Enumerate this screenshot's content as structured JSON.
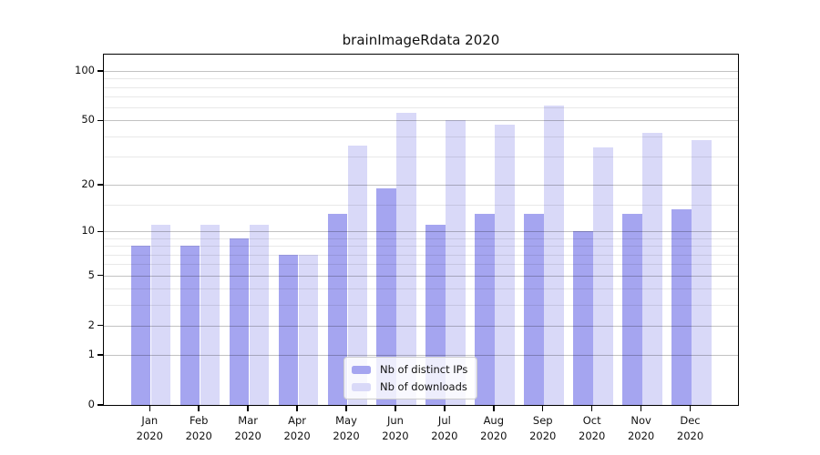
{
  "chart_data": {
    "type": "bar",
    "title": "brainImageRdata 2020",
    "categories": [
      "Jan",
      "Feb",
      "Mar",
      "Apr",
      "May",
      "Jun",
      "Jul",
      "Aug",
      "Sep",
      "Oct",
      "Nov",
      "Dec"
    ],
    "category_year": "2020",
    "series": [
      {
        "name": "Nb of distinct IPs",
        "color": "#a5a5f0",
        "values": [
          8,
          8,
          9,
          7,
          13,
          19,
          11,
          13,
          13,
          10,
          13,
          14
        ]
      },
      {
        "name": "Nb of downloads",
        "color": "#d9d9f8",
        "values": [
          11,
          11,
          11,
          7,
          35,
          56,
          50,
          47,
          62,
          34,
          42,
          38
        ]
      }
    ],
    "legend": [
      "Nb of distinct IPs",
      "Nb of downloads"
    ],
    "legend_position": "inside-bottom-center",
    "y_scale": "log1p",
    "y_ticks": [
      100,
      50,
      20,
      10,
      5,
      2,
      1,
      0
    ],
    "y_minor_gridlines": [
      3,
      4,
      6,
      7,
      8,
      9,
      15,
      30,
      40,
      60,
      70,
      80,
      90
    ],
    "ylim": [
      0,
      126
    ],
    "grid": true,
    "gridlines_over_bars": true
  }
}
